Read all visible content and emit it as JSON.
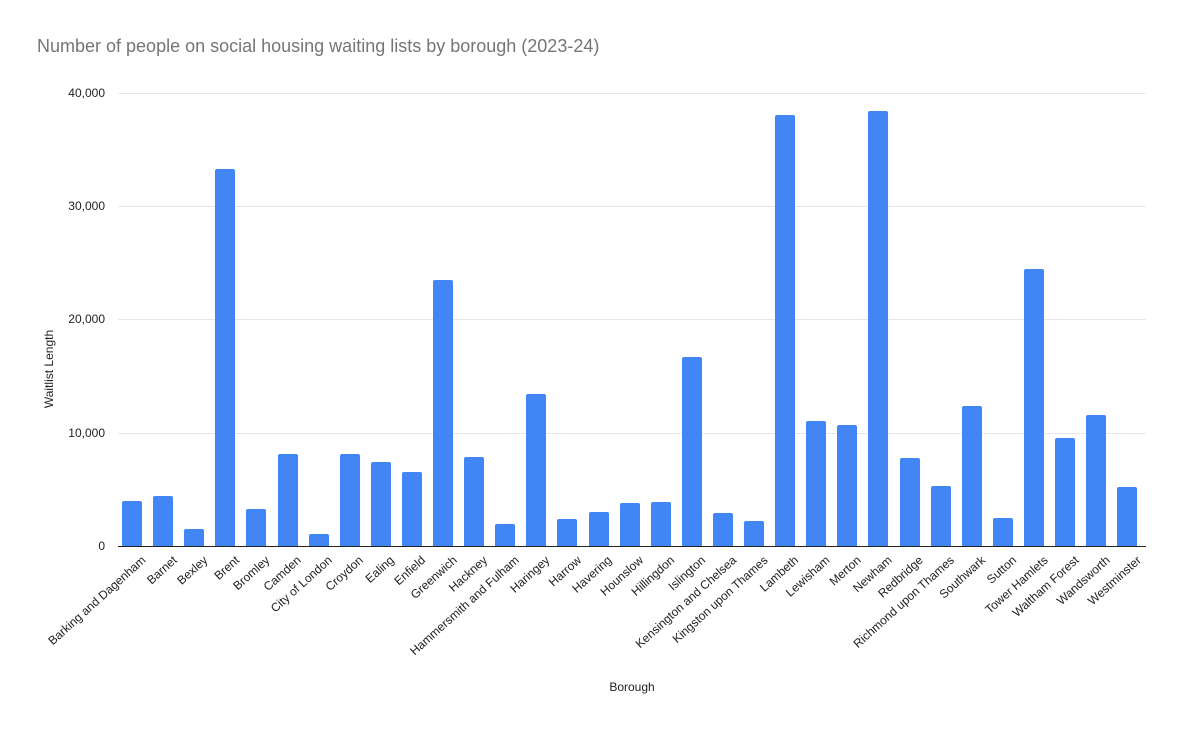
{
  "chart_data": {
    "type": "bar",
    "title": "Number of people on social housing waiting lists by borough (2023-24)",
    "xlabel": "Borough",
    "ylabel": "Waitlist Length",
    "ylim": [
      0,
      40000
    ],
    "yticks": [
      0,
      10000,
      20000,
      30000,
      40000
    ],
    "ytick_labels": [
      "0",
      "10,000",
      "20,000",
      "30,000",
      "40,000"
    ],
    "grid": true,
    "legend_position": "none",
    "categories": [
      "Barking and Dagenham",
      "Barnet",
      "Bexley",
      "Brent",
      "Bromley",
      "Camden",
      "City of London",
      "Croydon",
      "Ealing",
      "Enfield",
      "Greenwich",
      "Hackney",
      "Hammersmith and Fulham",
      "Haringey",
      "Harrow",
      "Havering",
      "Hounslow",
      "Hillingdon",
      "Islington",
      "Kensington and Chelsea",
      "Kingston upon Thames",
      "Lambeth",
      "Lewisham",
      "Merton",
      "Newham",
      "Redbridge",
      "Richmond upon Thames",
      "Southwark",
      "Sutton",
      "Tower Hamlets",
      "Waltham Forest",
      "Wandsworth",
      "Westminster"
    ],
    "values": [
      4000,
      4400,
      1500,
      33300,
      3300,
      8100,
      1100,
      8100,
      7400,
      6500,
      23500,
      7900,
      1900,
      13400,
      2400,
      3000,
      3800,
      3900,
      16700,
      2900,
      2200,
      38100,
      11000,
      10700,
      38400,
      7800,
      5300,
      12400,
      2500,
      24500,
      9500,
      11600,
      5200
    ]
  },
  "colors": {
    "title_text": "#757575",
    "axis_text": "#222222",
    "gridline": "#e6e6e6",
    "axis_line": "#222222",
    "bar": "#4285f4",
    "background": "#ffffff"
  }
}
